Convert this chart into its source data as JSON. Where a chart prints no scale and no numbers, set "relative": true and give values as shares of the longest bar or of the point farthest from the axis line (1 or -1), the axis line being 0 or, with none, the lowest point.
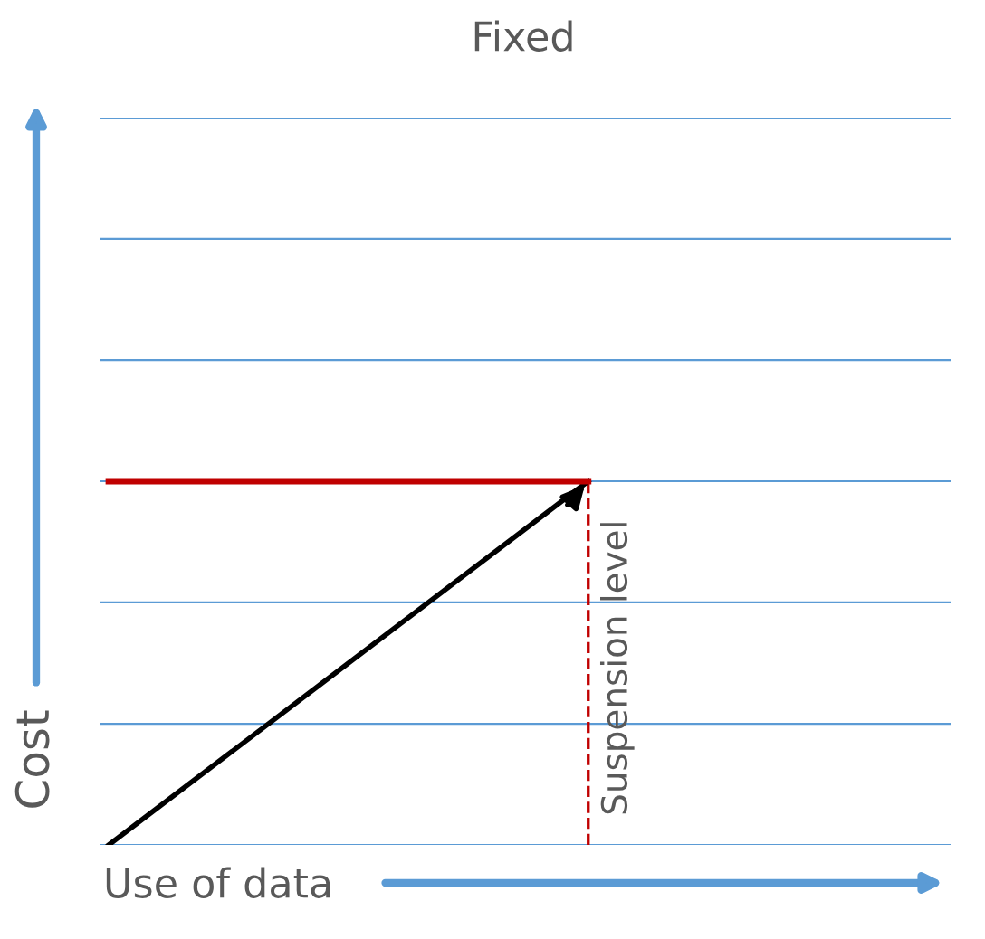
{
  "chart_data": {
    "type": "line",
    "title": "Fixed",
    "xlabel": "Use of data",
    "ylabel": "Cost",
    "relative": true,
    "categories": [
      null,
      null
    ],
    "series": [
      {
        "color": "#000000",
        "values": [
          0,
          1
        ],
        "marker": "none"
      },
      {
        "color": "#c00000",
        "values": [
          1,
          1
        ]
      }
    ],
    "ref_lines": [
      {
        "axis": "y",
        "value": 0,
        "color": "#5b9bd5"
      },
      {
        "axis": "y",
        "value": 0.333,
        "color": "#5b9bd5"
      },
      {
        "axis": "y",
        "value": 0.667,
        "color": "#5b9bd5"
      },
      {
        "axis": "y",
        "value": 1,
        "color": "#5b9bd5"
      },
      {
        "axis": "y",
        "value": 1.333,
        "color": "#5b9bd5"
      },
      {
        "axis": "y",
        "value": 1.667,
        "color": "#5b9bd5"
      },
      {
        "axis": "y",
        "value": 2,
        "color": "#5b9bd5"
      }
    ],
    "annotations": [
      "Suspension level"
    ],
    "legend": false
  }
}
